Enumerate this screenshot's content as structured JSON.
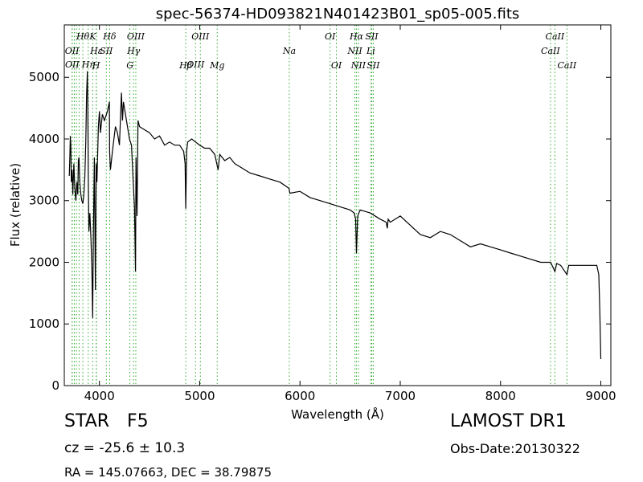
{
  "chart_data": {
    "type": "line",
    "title": "spec-56374-HD093821N401423B01_sp05-005.fits",
    "xlabel": "Wavelength (Å)",
    "ylabel": "Flux (relative)",
    "xlim": [
      3650,
      9100
    ],
    "ylim": [
      0,
      5850
    ],
    "x_ticks": [
      4000,
      5000,
      6000,
      7000,
      8000,
      9000
    ],
    "y_ticks": [
      0,
      1000,
      2000,
      3000,
      4000,
      5000
    ],
    "grid": false,
    "line_color": "#000000",
    "marker_color": "#33aa33",
    "series": [
      {
        "x": [
          3700,
          3705,
          3710,
          3715,
          3720,
          3728,
          3735,
          3745,
          3755,
          3765,
          3775,
          3785,
          3790,
          3797,
          3805,
          3815,
          3825,
          3835,
          3845,
          3855,
          3865,
          3872,
          3880,
          3885,
          3890,
          3895,
          3905,
          3915,
          3925,
          3933,
          3940,
          3950,
          3960,
          3968,
          3975,
          3990,
          4000,
          4010,
          4030,
          4050,
          4080,
          4100,
          4102,
          4110,
          4130,
          4160,
          4180,
          4200,
          4220,
          4230,
          4240,
          4260,
          4280,
          4300,
          4320,
          4340,
          4350,
          4360,
          4365,
          4375,
          4385,
          4400,
          4450,
          4500,
          4550,
          4600,
          4650,
          4700,
          4750,
          4800,
          4840,
          4855,
          4861,
          4870,
          4880,
          4920,
          4960,
          5000,
          5050,
          5100,
          5150,
          5170,
          5184,
          5200,
          5250,
          5300,
          5350,
          5400,
          5450,
          5500,
          5600,
          5700,
          5800,
          5890,
          5900,
          6000,
          6100,
          6200,
          6300,
          6400,
          6500,
          6540,
          6555,
          6563,
          6575,
          6600,
          6700,
          6800,
          6860,
          6870,
          6880,
          6900,
          7000,
          7100,
          7200,
          7300,
          7400,
          7500,
          7600,
          7700,
          7800,
          7900,
          8000,
          8100,
          8200,
          8300,
          8400,
          8500,
          8542,
          8560,
          8600,
          8662,
          8680,
          8700,
          8800,
          8900,
          8960,
          8980,
          8990,
          9000
        ],
        "y": [
          3400,
          3700,
          4050,
          3900,
          3300,
          3500,
          3100,
          3600,
          3200,
          3000,
          3300,
          3100,
          3650,
          3700,
          3300,
          3100,
          3000,
          2950,
          3100,
          3400,
          4000,
          4700,
          5100,
          4500,
          3300,
          2500,
          2800,
          2400,
          1900,
          1100,
          2500,
          3700,
          1550,
          3600,
          3300,
          4200,
          4450,
          4100,
          4400,
          4300,
          4450,
          4600,
          3800,
          3500,
          3800,
          4200,
          4100,
          3900,
          4750,
          4300,
          4600,
          4400,
          4200,
          4000,
          3900,
          3200,
          2900,
          1850,
          3700,
          2750,
          4300,
          4200,
          4150,
          4100,
          4000,
          4050,
          3900,
          3950,
          3900,
          3900,
          3800,
          3600,
          2870,
          3800,
          3950,
          4000,
          3950,
          3900,
          3850,
          3850,
          3750,
          3600,
          3500,
          3750,
          3650,
          3700,
          3600,
          3550,
          3500,
          3450,
          3400,
          3350,
          3300,
          3200,
          3120,
          3150,
          3050,
          3000,
          2950,
          2900,
          2850,
          2800,
          2700,
          2150,
          2750,
          2850,
          2800,
          2700,
          2650,
          2550,
          2700,
          2650,
          2750,
          2600,
          2450,
          2400,
          2500,
          2450,
          2350,
          2250,
          2300,
          2250,
          2200,
          2150,
          2100,
          2050,
          2000,
          2000,
          1850,
          1980,
          1950,
          1800,
          1950,
          1950,
          1950,
          1950,
          1950,
          1800,
          1200,
          430
        ]
      }
    ],
    "lines": [
      {
        "wl": 3727,
        "label": "OII",
        "row": 1
      },
      {
        "wl": 3729,
        "label": "OII",
        "row": 2
      },
      {
        "wl": 3750,
        "label": "",
        "row": 0
      },
      {
        "wl": 3771,
        "label": "",
        "row": 0
      },
      {
        "wl": 3798,
        "label": "",
        "row": 0
      },
      {
        "wl": 3835,
        "label": "Hθ",
        "row": 0
      },
      {
        "wl": 3889,
        "label": "Hη",
        "row": 2
      },
      {
        "wl": 3934,
        "label": "K",
        "row": 0
      },
      {
        "wl": 3968,
        "label": "H",
        "row": 3
      },
      {
        "wl": 3970,
        "label": "Hε",
        "row": 1
      },
      {
        "wl": 4069,
        "label": "SII",
        "row": 1
      },
      {
        "wl": 4102,
        "label": "Hδ",
        "row": 0
      },
      {
        "wl": 4304,
        "label": "G",
        "row": 3
      },
      {
        "wl": 4341,
        "label": "Hγ",
        "row": 1
      },
      {
        "wl": 4363,
        "label": "OIII",
        "row": 0
      },
      {
        "wl": 4861,
        "label": "Hβ",
        "row": 3
      },
      {
        "wl": 4959,
        "label": "OIII",
        "row": 2
      },
      {
        "wl": 5007,
        "label": "OIII",
        "row": 0
      },
      {
        "wl": 5175,
        "label": "Mg",
        "row": 3
      },
      {
        "wl": 5894,
        "label": "Na",
        "row": 1
      },
      {
        "wl": 6300,
        "label": "OI",
        "row": 0
      },
      {
        "wl": 6363,
        "label": "OI",
        "row": 3
      },
      {
        "wl": 6548,
        "label": "NII",
        "row": 1
      },
      {
        "wl": 6563,
        "label": "Hα",
        "row": 0
      },
      {
        "wl": 6583,
        "label": "NII",
        "row": 3
      },
      {
        "wl": 6707,
        "label": "Li",
        "row": 1
      },
      {
        "wl": 6716,
        "label": "SII",
        "row": 0
      },
      {
        "wl": 6731,
        "label": "SII",
        "row": 3
      },
      {
        "wl": 8498,
        "label": "CaII",
        "row": 1
      },
      {
        "wl": 8542,
        "label": "CaII",
        "row": 0
      },
      {
        "wl": 8662,
        "label": "CaII",
        "row": 3
      }
    ]
  },
  "footer": {
    "object_class": "STAR",
    "subclass": "F5",
    "redshift": "cz = -25.6 ± 10.3",
    "coords": "RA = 145.07663, DEC = 38.79875",
    "survey": "LAMOST DR1",
    "obs_date": "Obs-Date:20130322"
  }
}
